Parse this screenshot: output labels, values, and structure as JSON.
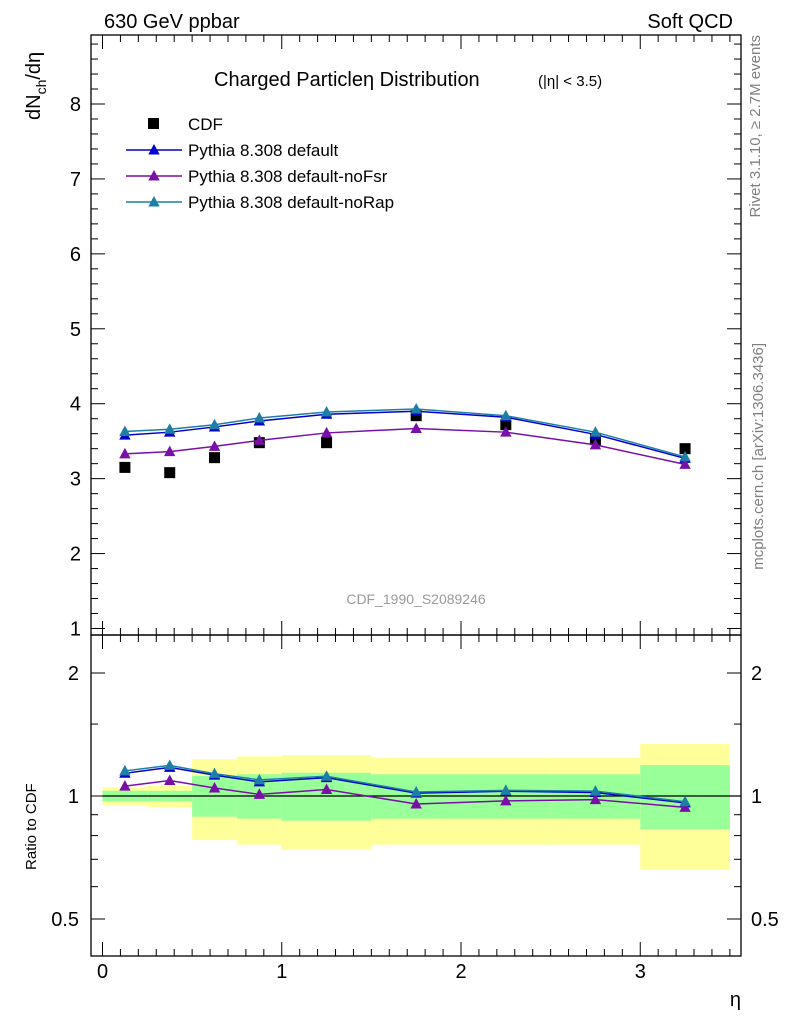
{
  "header": {
    "left": "630 GeV ppbar",
    "right": "Soft QCD"
  },
  "side_labels": {
    "top": "Rivet 3.1.10, ≥ 2.7M events",
    "bottom": "mcplots.cern.ch [arXiv:1306.3436]"
  },
  "chart_data": [
    {
      "type": "scatter",
      "panel": "main",
      "title": "Charged Particleη Distribution",
      "title_suffix": "(|η| < 3.5)",
      "ylabel": "dN_ch/dη",
      "ylabel_main": "dN",
      "ylabel_sub": "ch",
      "ylabel_rest": "/dη",
      "watermark": "CDF_1990_S2089246",
      "xlim": [
        0,
        3.5
      ],
      "ylim": [
        0.9,
        9.0
      ],
      "y_ticks": [
        "1",
        "2",
        "3",
        "4",
        "5",
        "6",
        "7",
        "8"
      ],
      "grid": false,
      "legend_position": "top-left",
      "x": [
        0.125,
        0.375,
        0.625,
        0.875,
        1.25,
        1.75,
        2.25,
        2.75,
        3.25
      ],
      "series": [
        {
          "name": "CDF",
          "kind": "data",
          "color": "#000000",
          "values": [
            3.15,
            3.08,
            3.28,
            3.48,
            3.48,
            3.84,
            3.72,
            3.52,
            3.4
          ]
        },
        {
          "name": "Pythia 8.308 default",
          "kind": "mc",
          "color": "#0000cc",
          "values": [
            3.58,
            3.62,
            3.69,
            3.77,
            3.86,
            3.9,
            3.82,
            3.59,
            3.27
          ]
        },
        {
          "name": "Pythia 8.308 default-noFsr",
          "kind": "mc",
          "color": "#7a0fa8",
          "values": [
            3.33,
            3.36,
            3.43,
            3.51,
            3.61,
            3.67,
            3.62,
            3.45,
            3.19
          ]
        },
        {
          "name": "Pythia 8.308 default-noRap",
          "kind": "mc",
          "color": "#1d7fa6",
          "values": [
            3.63,
            3.66,
            3.72,
            3.81,
            3.89,
            3.93,
            3.84,
            3.62,
            3.29
          ]
        }
      ]
    },
    {
      "type": "line",
      "panel": "ratio",
      "ylabel": "Ratio to CDF",
      "xlabel": "η",
      "xlim": [
        0,
        3.5
      ],
      "ylim": [
        0.37,
        2.5
      ],
      "y_scale": "log",
      "x_ticks": [
        "0",
        "1",
        "2",
        "3"
      ],
      "y_ticks": [
        "0.5",
        "1",
        "2"
      ],
      "reference_line": 1,
      "x": [
        0.125,
        0.375,
        0.625,
        0.875,
        1.25,
        1.75,
        2.25,
        2.75,
        3.25
      ],
      "bins": [
        [
          0,
          0.25
        ],
        [
          0.25,
          0.5
        ],
        [
          0.5,
          0.75
        ],
        [
          0.75,
          1.0
        ],
        [
          1.0,
          1.5
        ],
        [
          1.5,
          2.0
        ],
        [
          2.0,
          2.5
        ],
        [
          2.5,
          3.0
        ],
        [
          3.0,
          3.5
        ]
      ],
      "band_yellow": [
        [
          0.95,
          1.05
        ],
        [
          0.94,
          1.06
        ],
        [
          0.78,
          1.23
        ],
        [
          0.76,
          1.25
        ],
        [
          0.74,
          1.26
        ],
        [
          0.76,
          1.24
        ],
        [
          0.76,
          1.24
        ],
        [
          0.76,
          1.24
        ],
        [
          0.66,
          1.34
        ]
      ],
      "band_green": [
        [
          0.97,
          1.03
        ],
        [
          0.97,
          1.03
        ],
        [
          0.89,
          1.12
        ],
        [
          0.88,
          1.13
        ],
        [
          0.87,
          1.14
        ],
        [
          0.88,
          1.13
        ],
        [
          0.88,
          1.13
        ],
        [
          0.88,
          1.13
        ],
        [
          0.83,
          1.19
        ]
      ],
      "band_colors": {
        "outer": "#ffff99",
        "inner": "#99ff99"
      },
      "series": [
        {
          "name": "Pythia 8.308 default",
          "color": "#0000cc",
          "values": [
            1.137,
            1.175,
            1.125,
            1.083,
            1.109,
            1.016,
            1.027,
            1.02,
            0.962
          ]
        },
        {
          "name": "Pythia 8.308 default-noFsr",
          "color": "#7a0fa8",
          "values": [
            1.057,
            1.091,
            1.046,
            1.009,
            1.037,
            0.956,
            0.973,
            0.98,
            0.938
          ]
        },
        {
          "name": "Pythia 8.308 default-noRap",
          "color": "#1d7fa6",
          "values": [
            1.152,
            1.188,
            1.134,
            1.095,
            1.118,
            1.023,
            1.032,
            1.028,
            0.968
          ]
        }
      ]
    }
  ]
}
